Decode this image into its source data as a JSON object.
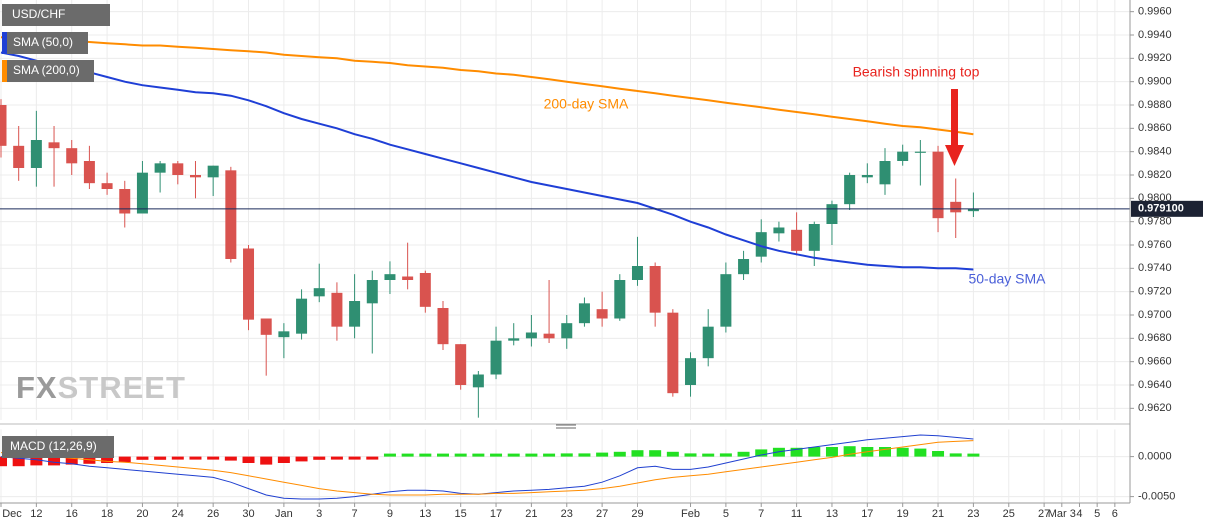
{
  "chart_data": {
    "type": "candlestick",
    "title": "USD/CHF",
    "categories": [
      "Dec",
      null,
      "12",
      null,
      "16",
      null,
      "18",
      null,
      "20",
      null,
      "24",
      null,
      "26",
      null,
      "30",
      null,
      "Jan",
      null,
      "3",
      null,
      "7",
      null,
      "9",
      null,
      "13",
      null,
      "15",
      null,
      "17",
      null,
      "21",
      null,
      "23",
      null,
      "27",
      null,
      "29",
      null,
      null,
      "Feb",
      null,
      "5",
      null,
      "7",
      null,
      "11",
      null,
      "13",
      null,
      "17",
      null,
      "19",
      null,
      "21",
      null,
      "23",
      null,
      "25",
      null,
      "27",
      "Mar 3",
      "4",
      "5",
      "6"
    ],
    "open": [
      0.988,
      0.9845,
      0.9826,
      0.9848,
      0.9843,
      0.9832,
      0.9813,
      0.9808,
      0.9787,
      0.9822,
      0.983,
      0.982,
      0.9818,
      0.9824,
      0.9757,
      0.9697,
      0.9681,
      0.9684,
      0.9716,
      0.9719,
      0.969,
      0.971,
      0.973,
      0.9733,
      0.9736,
      0.9706,
      0.9675,
      0.9638,
      0.9649,
      0.9678,
      0.968,
      0.9684,
      0.968,
      0.9693,
      0.9705,
      0.9697,
      0.973,
      0.9742,
      0.9702,
      0.964,
      0.9663,
      0.969,
      0.9735,
      0.975,
      0.977,
      0.9773,
      0.9755,
      0.9778,
      0.9795,
      0.9818,
      0.9812,
      0.9832,
      0.9839,
      0.984,
      0.9797,
      0.9789,
      null,
      null,
      null,
      null,
      null,
      null,
      null,
      null
    ],
    "high": [
      0.9885,
      0.9862,
      0.9875,
      0.9862,
      0.985,
      0.9845,
      0.9822,
      0.9815,
      0.9832,
      0.9832,
      0.9832,
      0.9832,
      0.9828,
      0.9827,
      0.976,
      0.9697,
      0.9693,
      0.9722,
      0.9744,
      0.9728,
      0.9735,
      0.9738,
      0.9746,
      0.9762,
      0.9738,
      0.9712,
      0.9675,
      0.9652,
      0.969,
      0.9693,
      0.97,
      0.973,
      0.97,
      0.9715,
      0.972,
      0.9735,
      0.9767,
      0.9745,
      0.9705,
      0.9668,
      0.9705,
      0.9745,
      0.9755,
      0.9782,
      0.978,
      0.9788,
      0.978,
      0.9798,
      0.9822,
      0.983,
      0.9843,
      0.9846,
      0.985,
      0.9845,
      0.9817,
      0.9805,
      null,
      null,
      null,
      null,
      null,
      null,
      null,
      null
    ],
    "low": [
      0.9835,
      0.9815,
      0.981,
      0.981,
      0.982,
      0.9808,
      0.9803,
      0.9775,
      0.9787,
      0.9805,
      0.9812,
      0.98,
      0.9802,
      0.9745,
      0.9687,
      0.9648,
      0.9663,
      0.9679,
      0.9711,
      0.9678,
      0.968,
      0.9667,
      0.9718,
      0.9722,
      0.9702,
      0.967,
      0.9636,
      0.9612,
      0.9645,
      0.9674,
      0.9673,
      0.9676,
      0.9671,
      0.969,
      0.969,
      0.9695,
      0.9725,
      0.969,
      0.963,
      0.963,
      0.9656,
      0.9685,
      0.973,
      0.9745,
      0.9763,
      0.9751,
      0.9742,
      0.976,
      0.979,
      0.9813,
      0.9803,
      0.9828,
      0.9811,
      0.9771,
      0.9766,
      0.9784,
      null,
      null,
      null,
      null,
      null,
      null,
      null,
      null
    ],
    "close": [
      0.9845,
      0.9826,
      0.985,
      0.9843,
      0.983,
      0.9813,
      0.9808,
      0.9787,
      0.9822,
      0.983,
      0.982,
      0.9818,
      0.9828,
      0.9748,
      0.9696,
      0.9683,
      0.9686,
      0.9714,
      0.9723,
      0.969,
      0.9712,
      0.973,
      0.9735,
      0.973,
      0.9707,
      0.9675,
      0.964,
      0.9649,
      0.9678,
      0.968,
      0.9685,
      0.968,
      0.9693,
      0.971,
      0.9697,
      0.973,
      0.9742,
      0.9702,
      0.9633,
      0.9663,
      0.969,
      0.9735,
      0.9748,
      0.9771,
      0.9775,
      0.9755,
      0.9778,
      0.9795,
      0.982,
      0.982,
      0.9832,
      0.984,
      0.984,
      0.9783,
      0.9788,
      0.9791,
      null,
      null,
      null,
      null,
      null,
      null,
      null,
      null
    ],
    "up_color": "#2f8f72",
    "down_color": "#d9534f",
    "series": [
      {
        "name": "SMA (50,0)",
        "color": "#1f3fd6",
        "values": [
          0.9925,
          0.9922,
          0.9918,
          0.9915,
          0.9912,
          0.9908,
          0.9904,
          0.99,
          0.9897,
          0.9895,
          0.9893,
          0.9891,
          0.989,
          0.9888,
          0.9884,
          0.9879,
          0.9873,
          0.9868,
          0.9864,
          0.986,
          0.9855,
          0.9851,
          0.9846,
          0.9842,
          0.9838,
          0.9834,
          0.983,
          0.9826,
          0.9822,
          0.9818,
          0.9814,
          0.9811,
          0.9808,
          0.9805,
          0.9802,
          0.9799,
          0.9796,
          0.9791,
          0.9786,
          0.978,
          0.9775,
          0.9769,
          0.9764,
          0.9759,
          0.9755,
          0.9752,
          0.9749,
          0.9747,
          0.9745,
          0.9743,
          0.9742,
          0.9741,
          0.9741,
          0.974,
          0.974,
          0.9739,
          null,
          null,
          null,
          null,
          null,
          null,
          null,
          null
        ]
      },
      {
        "name": "SMA (200,0)",
        "color": "#ff8c00",
        "values": [
          0.9938,
          0.9937,
          0.9936,
          0.9936,
          0.9935,
          0.9934,
          0.9933,
          0.9932,
          0.9931,
          0.9931,
          0.993,
          0.9929,
          0.9928,
          0.9927,
          0.9926,
          0.9925,
          0.9923,
          0.9922,
          0.9921,
          0.992,
          0.9918,
          0.9917,
          0.9916,
          0.9914,
          0.9913,
          0.9912,
          0.991,
          0.9909,
          0.9907,
          0.9906,
          0.9904,
          0.9902,
          0.99,
          0.9898,
          0.9896,
          0.9894,
          0.9892,
          0.989,
          0.9888,
          0.9886,
          0.9884,
          0.9882,
          0.988,
          0.9878,
          0.9876,
          0.9874,
          0.9872,
          0.987,
          0.9868,
          0.9866,
          0.9864,
          0.9862,
          0.9861,
          0.9859,
          0.9857,
          0.9855,
          null,
          null,
          null,
          null,
          null,
          null,
          null,
          null
        ]
      }
    ],
    "annotations": [
      {
        "text": "Bearish spinning top",
        "color": "#e8231e"
      },
      {
        "text": "200-day SMA",
        "color": "#ff8c00"
      },
      {
        "text": "50-day SMA",
        "color": "#4a5fd8"
      }
    ],
    "last_price": {
      "value": 0.9791,
      "label": "0.979100"
    },
    "watermark": [
      "FX",
      "STREET"
    ],
    "ylim": [
      0.961,
      0.997
    ],
    "yticks": [
      {
        "value": 0.962,
        "label": "0.9620"
      },
      {
        "value": 0.964,
        "label": "0.9640"
      },
      {
        "value": 0.966,
        "label": "0.9660"
      },
      {
        "value": 0.968,
        "label": "0.9680"
      },
      {
        "value": 0.97,
        "label": "0.9700"
      },
      {
        "value": 0.972,
        "label": "0.9720"
      },
      {
        "value": 0.974,
        "label": "0.9740"
      },
      {
        "value": 0.976,
        "label": "0.9760"
      },
      {
        "value": 0.978,
        "label": "0.9780"
      },
      {
        "value": 0.98,
        "label": "0.9800"
      },
      {
        "value": 0.982,
        "label": "0.9820"
      },
      {
        "value": 0.984,
        "label": "0.9840"
      },
      {
        "value": 0.986,
        "label": "0.9860"
      },
      {
        "value": 0.988,
        "label": "0.9880"
      },
      {
        "value": 0.99,
        "label": "0.9900"
      },
      {
        "value": 0.992,
        "label": "0.9920"
      },
      {
        "value": 0.994,
        "label": "0.9940"
      },
      {
        "value": 0.996,
        "label": "0.9960"
      }
    ],
    "grid": true,
    "macd": {
      "type": "macd",
      "title": "MACD (12,26,9)",
      "ylim": [
        -0.0058,
        0.0034
      ],
      "yticks": [
        {
          "value": 0,
          "label": "0.0000"
        },
        {
          "value": -0.005,
          "label": "-0.0050"
        }
      ],
      "histogram": {
        "up_color": "#22e022",
        "down_color": "#ee1111",
        "values": [
          -0.0012,
          -0.0012,
          -0.0011,
          -0.0011,
          -0.001,
          -0.0009,
          -0.0008,
          -0.0007,
          -0.0004,
          -0.0004,
          -0.0003,
          -0.0003,
          -0.0003,
          -0.0005,
          -0.0008,
          -0.001,
          -0.0008,
          -0.0006,
          -0.0004,
          -0.0003,
          -0.0002,
          -0.0001,
          0.0001,
          0.0001,
          0.0002,
          0.0002,
          0.0002,
          0.0002,
          0.0003,
          0.0003,
          0.0003,
          0.0003,
          0.0004,
          0.0004,
          0.0005,
          0.0006,
          0.0008,
          0.0008,
          0.0006,
          0.0004,
          0.0003,
          0.0004,
          0.0006,
          0.0009,
          0.0011,
          0.0011,
          0.0012,
          0.0012,
          0.0013,
          0.0012,
          0.0012,
          0.0011,
          0.001,
          0.0007,
          0.0004,
          0.0002,
          null,
          null,
          null,
          null,
          null,
          null,
          null,
          null
        ]
      },
      "lines": [
        {
          "color": "#2040d0",
          "values": [
            0,
            -0.0002,
            -0.0004,
            -0.0007,
            -0.0009,
            -0.0012,
            -0.0014,
            -0.0016,
            -0.0018,
            -0.002,
            -0.0022,
            -0.0024,
            -0.0026,
            -0.0032,
            -0.004,
            -0.0048,
            -0.0052,
            -0.0053,
            -0.0053,
            -0.0052,
            -0.005,
            -0.0047,
            -0.0044,
            -0.0042,
            -0.0042,
            -0.0043,
            -0.0046,
            -0.0047,
            -0.0045,
            -0.0043,
            -0.0042,
            -0.0041,
            -0.0039,
            -0.0037,
            -0.0032,
            -0.0024,
            -0.0014,
            -0.0012,
            -0.0016,
            -0.0016,
            -0.0013,
            -0.0008,
            -0.0003,
            0.0002,
            0.0006,
            0.0009,
            0.0012,
            0.0015,
            0.0018,
            0.0021,
            0.0023,
            0.0025,
            0.0027,
            0.0026,
            0.0024,
            0.0022,
            null,
            null,
            null,
            null,
            null,
            null,
            null,
            null
          ]
        },
        {
          "color": "#ff8c00",
          "values": [
            0.0005,
            0.0004,
            0.0002,
            0,
            -0.0002,
            -0.0004,
            -0.0006,
            -0.0007,
            -0.0009,
            -0.0011,
            -0.0013,
            -0.0015,
            -0.0017,
            -0.002,
            -0.0024,
            -0.0028,
            -0.0032,
            -0.0036,
            -0.004,
            -0.0043,
            -0.0045,
            -0.0047,
            -0.0048,
            -0.0048,
            -0.0048,
            -0.0047,
            -0.0047,
            -0.0047,
            -0.0046,
            -0.0046,
            -0.0045,
            -0.0044,
            -0.0043,
            -0.0042,
            -0.004,
            -0.0037,
            -0.0033,
            -0.0029,
            -0.0026,
            -0.0024,
            -0.0022,
            -0.0019,
            -0.0016,
            -0.0013,
            -0.001,
            -0.0007,
            -0.0004,
            -0.0001,
            0.0003,
            0.0006,
            0.0009,
            0.0012,
            0.0015,
            0.0018,
            0.0019,
            0.002,
            null,
            null,
            null,
            null,
            null,
            null,
            null,
            null
          ]
        }
      ]
    }
  }
}
